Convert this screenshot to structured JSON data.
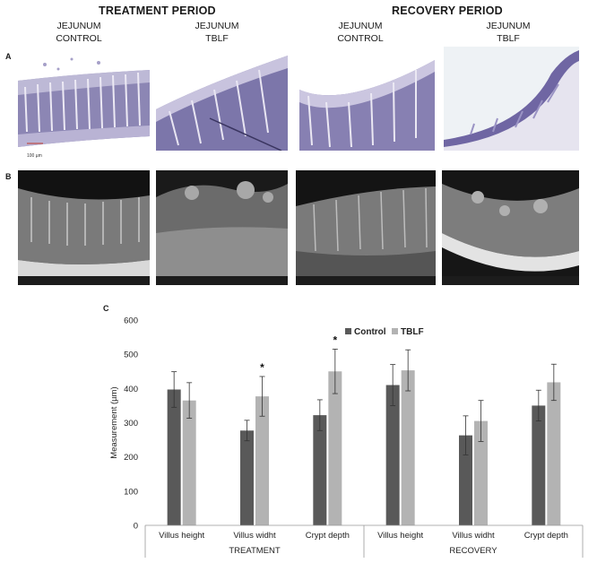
{
  "header": {
    "treatment_period": "TREATMENT PERIOD",
    "recovery_period": "RECOVERY PERIOD"
  },
  "columns": [
    {
      "line1": "JEJUNUM",
      "line2": "CONTROL"
    },
    {
      "line1": "JEJUNUM",
      "line2": "TBLF"
    },
    {
      "line1": "JEJUNUM",
      "line2": "CONTROL"
    },
    {
      "line1": "JEJUNUM",
      "line2": "TBLF"
    }
  ],
  "panels": {
    "a": "A",
    "b": "B",
    "c": "C"
  },
  "scale_bar_label": "100 µm",
  "colors": {
    "control": "#595959",
    "tblf": "#b3b3b3",
    "histology": "#6e6aa0",
    "sem": "#3a3a3a"
  },
  "chart_data": {
    "type": "bar",
    "title": "",
    "ylabel": "Measurement (µm)",
    "xlabel": "",
    "ylim": [
      0,
      600
    ],
    "yticks": [
      0,
      100,
      200,
      300,
      400,
      500,
      600
    ],
    "grid": false,
    "legend": "top-right",
    "categories": [
      "Villus height",
      "Villus widht",
      "Crypt depth",
      "Villus height",
      "Villus widht",
      "Crypt depth"
    ],
    "groups": [
      {
        "label": "TREATMENT",
        "categories": [
          "Villus height",
          "Villus widht",
          "Crypt depth"
        ]
      },
      {
        "label": "RECOVERY",
        "categories": [
          "Villus height",
          "Villus widht",
          "Crypt depth"
        ]
      }
    ],
    "series": [
      {
        "name": "Control",
        "values": [
          397,
          277,
          322,
          410,
          263,
          350
        ],
        "errors": [
          52,
          30,
          45,
          60,
          57,
          45
        ]
      },
      {
        "name": "TBLF",
        "values": [
          365,
          377,
          450,
          453,
          305,
          418
        ],
        "errors": [
          52,
          58,
          65,
          60,
          60,
          53
        ]
      }
    ],
    "annotations": [
      {
        "text": "*",
        "category_index": 1,
        "series": "TBLF"
      },
      {
        "text": "*",
        "category_index": 2,
        "series": "TBLF"
      }
    ]
  }
}
